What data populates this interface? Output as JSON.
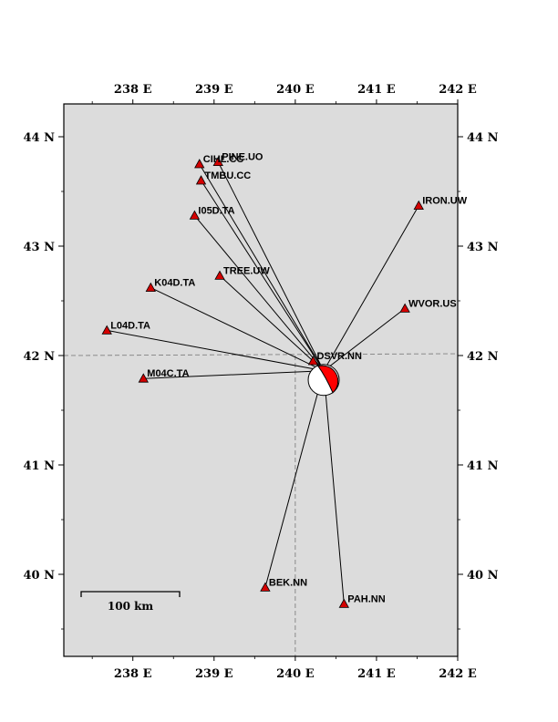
{
  "map": {
    "lon_range": [
      237.15,
      242.0
    ],
    "lat_range": [
      39.25,
      44.3
    ],
    "colors": {
      "land": "#dcdcdc",
      "border_line": "#808080",
      "station_fill": "#d40000",
      "ray_line": "#000000",
      "beachball_red": "#ff0000"
    },
    "lon_ticks": [
      {
        "value": 238,
        "label": "238 E"
      },
      {
        "value": 239,
        "label": "239 E"
      },
      {
        "value": 240,
        "label": "240 E"
      },
      {
        "value": 241,
        "label": "241 E"
      },
      {
        "value": 242,
        "label": "242 E"
      }
    ],
    "lat_ticks": [
      {
        "value": 40,
        "label": "40 N"
      },
      {
        "value": 41,
        "label": "41 N"
      },
      {
        "value": 42,
        "label": "42 N"
      },
      {
        "value": 43,
        "label": "43 N"
      },
      {
        "value": 44,
        "label": "44 N"
      }
    ],
    "event": {
      "lon": 240.35,
      "lat": 41.86
    },
    "stations": [
      {
        "name": "PINE.UO",
        "lon": 239.05,
        "lat": 43.77
      },
      {
        "name": "CIHL.CC",
        "lon": 238.82,
        "lat": 43.75
      },
      {
        "name": "TMBU.CC",
        "lon": 238.84,
        "lat": 43.6
      },
      {
        "name": "I05D.TA",
        "lon": 238.76,
        "lat": 43.28
      },
      {
        "name": "IRON.UW",
        "lon": 241.52,
        "lat": 43.37
      },
      {
        "name": "TREE.UW",
        "lon": 239.07,
        "lat": 42.73
      },
      {
        "name": "K04D.TA",
        "lon": 238.22,
        "lat": 42.62
      },
      {
        "name": "WVOR.US",
        "lon": 241.35,
        "lat": 42.43
      },
      {
        "name": "L04D.TA",
        "lon": 237.68,
        "lat": 42.23
      },
      {
        "name": "DSVR.NN",
        "lon": 240.22,
        "lat": 41.95
      },
      {
        "name": "M04C.TA",
        "lon": 238.13,
        "lat": 41.79
      },
      {
        "name": "BEK.NN",
        "lon": 239.63,
        "lat": 39.88
      },
      {
        "name": "PAH.NN",
        "lon": 240.6,
        "lat": 39.73
      }
    ],
    "scale_bar": {
      "label": "100 km"
    }
  }
}
